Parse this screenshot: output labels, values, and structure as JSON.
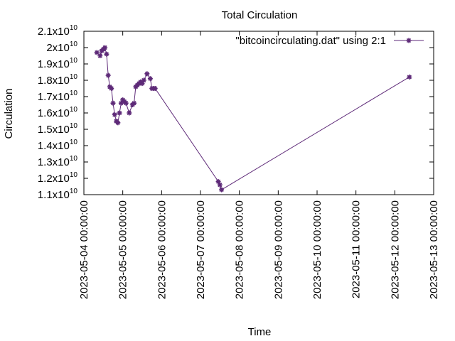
{
  "chart_data": {
    "type": "line",
    "title": "Total Circulation",
    "xlabel": "Time",
    "ylabel": "Circulation",
    "x_is_time": true,
    "xlim": [
      "2023-05-04 00:00:00",
      "2023-05-13 00:00:00"
    ],
    "ylim": [
      11000000000.0,
      21000000000.0
    ],
    "x_ticks": [
      "2023-05-04 00:00:00",
      "2023-05-05 00:00:00",
      "2023-05-06 00:00:00",
      "2023-05-07 00:00:00",
      "2023-05-08 00:00:00",
      "2023-05-09 00:00:00",
      "2023-05-10 00:00:00",
      "2023-05-11 00:00:00",
      "2023-05-12 00:00:00",
      "2023-05-13 00:00:00"
    ],
    "y_ticks": [
      {
        "value": 11000000000.0,
        "mantissa": "1.1",
        "exp": "10"
      },
      {
        "value": 12000000000.0,
        "mantissa": "1.2",
        "exp": "10"
      },
      {
        "value": 13000000000.0,
        "mantissa": "1.3",
        "exp": "10"
      },
      {
        "value": 14000000000.0,
        "mantissa": "1.4",
        "exp": "10"
      },
      {
        "value": 15000000000.0,
        "mantissa": "1.5",
        "exp": "10"
      },
      {
        "value": 16000000000.0,
        "mantissa": "1.6",
        "exp": "10"
      },
      {
        "value": 17000000000.0,
        "mantissa": "1.7",
        "exp": "10"
      },
      {
        "value": 18000000000.0,
        "mantissa": "1.8",
        "exp": "10"
      },
      {
        "value": 19000000000.0,
        "mantissa": "1.9",
        "exp": "10"
      },
      {
        "value": 20000000000.0,
        "mantissa": "2",
        "exp": "10"
      },
      {
        "value": 21000000000.0,
        "mantissa": "2.1",
        "exp": "10"
      }
    ],
    "grid": false,
    "legend_position": "top-right",
    "series": [
      {
        "name": "\"bitcoincirculating.dat\" using 2:1",
        "color": "#5e2a78",
        "marker": "asterisk",
        "x": [
          "2023-05-04 08:00:00",
          "2023-05-04 10:00:00",
          "2023-05-04 11:00:00",
          "2023-05-04 12:00:00",
          "2023-05-04 13:00:00",
          "2023-05-04 14:00:00",
          "2023-05-04 15:00:00",
          "2023-05-04 16:00:00",
          "2023-05-04 17:00:00",
          "2023-05-04 18:00:00",
          "2023-05-04 19:00:00",
          "2023-05-04 20:00:00",
          "2023-05-04 21:00:00",
          "2023-05-04 22:00:00",
          "2023-05-04 23:00:00",
          "2023-05-05 00:00:00",
          "2023-05-05 01:00:00",
          "2023-05-05 02:00:00",
          "2023-05-05 04:00:00",
          "2023-05-05 06:00:00",
          "2023-05-05 07:00:00",
          "2023-05-05 08:00:00",
          "2023-05-05 09:00:00",
          "2023-05-05 10:00:00",
          "2023-05-05 11:00:00",
          "2023-05-05 12:00:00",
          "2023-05-05 13:00:00",
          "2023-05-05 15:00:00",
          "2023-05-05 17:00:00",
          "2023-05-05 18:00:00",
          "2023-05-05 19:00:00",
          "2023-05-05 20:00:00",
          "2023-05-07 11:00:00",
          "2023-05-07 12:00:00",
          "2023-05-07 13:00:00",
          "2023-05-12 09:00:00"
        ],
        "y": [
          19700000000.0,
          19500000000.0,
          19800000000.0,
          19900000000.0,
          20000000000.0,
          19600000000.0,
          18300000000.0,
          17600000000.0,
          17500000000.0,
          16600000000.0,
          15900000000.0,
          15500000000.0,
          15400000000.0,
          16000000000.0,
          16600000000.0,
          16800000000.0,
          16700000000.0,
          16600000000.0,
          16000000000.0,
          16500000000.0,
          16600000000.0,
          17600000000.0,
          17700000000.0,
          17800000000.0,
          17900000000.0,
          17800000000.0,
          18000000000.0,
          18400000000.0,
          18100000000.0,
          17500000000.0,
          17500000000.0,
          17500000000.0,
          11800000000.0,
          11600000000.0,
          11300000000.0,
          18200000000.0
        ]
      }
    ]
  }
}
